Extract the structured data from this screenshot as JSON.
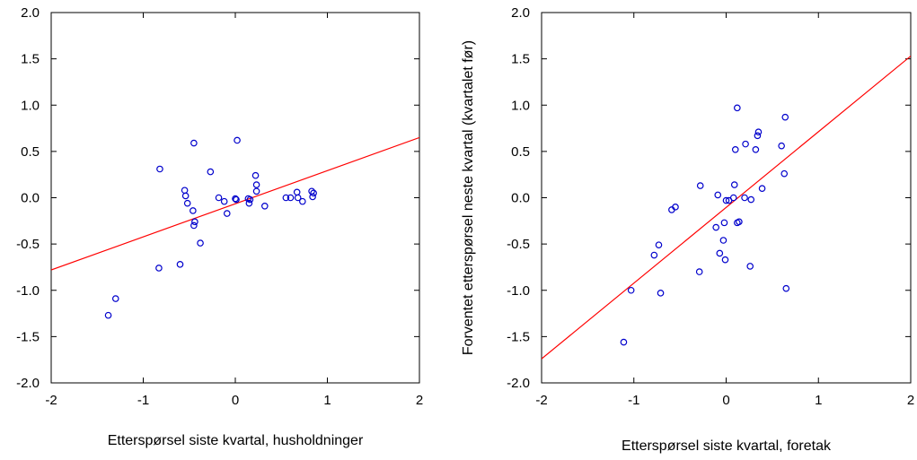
{
  "chart_data": [
    {
      "type": "scatter",
      "xlabel": "Etterspørsel siste kvartal, husholdninger",
      "ylabel": "",
      "xlim": [
        -2,
        2
      ],
      "ylim": [
        -2,
        2
      ],
      "x_ticks": [
        "-2",
        "-1",
        "0",
        "1",
        "2"
      ],
      "y_ticks": [
        "-2.0",
        "-1.5",
        "-1.0",
        "-0.5",
        "0.0",
        "0.5",
        "1.0",
        "1.5",
        "2.0"
      ],
      "grid": false,
      "marker_color": "#0000cc",
      "line_color": "#ff0000",
      "fit_line": {
        "x": [
          -2,
          2
        ],
        "y": [
          -0.78,
          0.65
        ]
      },
      "points": [
        {
          "x": -1.38,
          "y": -1.27
        },
        {
          "x": -1.3,
          "y": -1.09
        },
        {
          "x": -0.83,
          "y": -0.76
        },
        {
          "x": -0.82,
          "y": 0.31
        },
        {
          "x": -0.6,
          "y": -0.72
        },
        {
          "x": -0.55,
          "y": 0.08
        },
        {
          "x": -0.54,
          "y": 0.02
        },
        {
          "x": -0.52,
          "y": -0.06
        },
        {
          "x": -0.46,
          "y": -0.14
        },
        {
          "x": -0.45,
          "y": 0.59
        },
        {
          "x": -0.45,
          "y": -0.3
        },
        {
          "x": -0.44,
          "y": -0.26
        },
        {
          "x": -0.38,
          "y": -0.49
        },
        {
          "x": -0.27,
          "y": 0.28
        },
        {
          "x": -0.18,
          "y": 0.0
        },
        {
          "x": -0.12,
          "y": -0.04
        },
        {
          "x": -0.09,
          "y": -0.17
        },
        {
          "x": 0.0,
          "y": -0.01
        },
        {
          "x": 0.01,
          "y": -0.02
        },
        {
          "x": 0.02,
          "y": 0.62
        },
        {
          "x": 0.14,
          "y": -0.01
        },
        {
          "x": 0.15,
          "y": -0.06
        },
        {
          "x": 0.16,
          "y": -0.02
        },
        {
          "x": 0.22,
          "y": 0.24
        },
        {
          "x": 0.23,
          "y": 0.14
        },
        {
          "x": 0.23,
          "y": 0.07
        },
        {
          "x": 0.32,
          "y": -0.09
        },
        {
          "x": 0.55,
          "y": 0.0
        },
        {
          "x": 0.6,
          "y": 0.0
        },
        {
          "x": 0.67,
          "y": 0.06
        },
        {
          "x": 0.68,
          "y": 0.0
        },
        {
          "x": 0.73,
          "y": -0.04
        },
        {
          "x": 0.83,
          "y": 0.07
        },
        {
          "x": 0.85,
          "y": 0.05
        },
        {
          "x": 0.84,
          "y": 0.01
        }
      ]
    },
    {
      "type": "scatter",
      "xlabel": "Etterspørsel siste kvartal, foretak",
      "ylabel": "Forventet etterspørsel neste kvartal (kvartalet før)",
      "xlim": [
        -2,
        2
      ],
      "ylim": [
        -2,
        2
      ],
      "x_ticks": [
        "-2",
        "-1",
        "0",
        "1",
        "2"
      ],
      "y_ticks": [
        "-2.0",
        "-1.5",
        "-1.0",
        "-0.5",
        "0.0",
        "0.5",
        "1.0",
        "1.5",
        "2.0"
      ],
      "grid": false,
      "marker_color": "#0000cc",
      "line_color": "#ff0000",
      "fit_line": {
        "x": [
          -2,
          2
        ],
        "y": [
          -1.74,
          1.53
        ]
      },
      "points": [
        {
          "x": -1.11,
          "y": -1.56
        },
        {
          "x": -1.03,
          "y": -1.0
        },
        {
          "x": -0.78,
          "y": -0.62
        },
        {
          "x": -0.73,
          "y": -0.51
        },
        {
          "x": -0.71,
          "y": -1.03
        },
        {
          "x": -0.59,
          "y": -0.13
        },
        {
          "x": -0.55,
          "y": -0.1
        },
        {
          "x": -0.29,
          "y": -0.8
        },
        {
          "x": -0.28,
          "y": 0.13
        },
        {
          "x": -0.11,
          "y": -0.32
        },
        {
          "x": -0.09,
          "y": 0.03
        },
        {
          "x": -0.07,
          "y": -0.6
        },
        {
          "x": -0.03,
          "y": -0.46
        },
        {
          "x": -0.02,
          "y": -0.27
        },
        {
          "x": -0.01,
          "y": -0.67
        },
        {
          "x": 0.0,
          "y": -0.03
        },
        {
          "x": 0.03,
          "y": -0.03
        },
        {
          "x": 0.08,
          "y": 0.0
        },
        {
          "x": 0.09,
          "y": 0.14
        },
        {
          "x": 0.1,
          "y": 0.52
        },
        {
          "x": 0.12,
          "y": 0.97
        },
        {
          "x": 0.12,
          "y": -0.27
        },
        {
          "x": 0.14,
          "y": -0.26
        },
        {
          "x": 0.2,
          "y": 0.0
        },
        {
          "x": 0.21,
          "y": 0.58
        },
        {
          "x": 0.26,
          "y": -0.74
        },
        {
          "x": 0.27,
          "y": -0.02
        },
        {
          "x": 0.32,
          "y": 0.52
        },
        {
          "x": 0.34,
          "y": 0.67
        },
        {
          "x": 0.35,
          "y": 0.71
        },
        {
          "x": 0.39,
          "y": 0.1
        },
        {
          "x": 0.6,
          "y": 0.56
        },
        {
          "x": 0.63,
          "y": 0.26
        },
        {
          "x": 0.64,
          "y": 0.87
        },
        {
          "x": 0.65,
          "y": -0.98
        }
      ]
    }
  ]
}
